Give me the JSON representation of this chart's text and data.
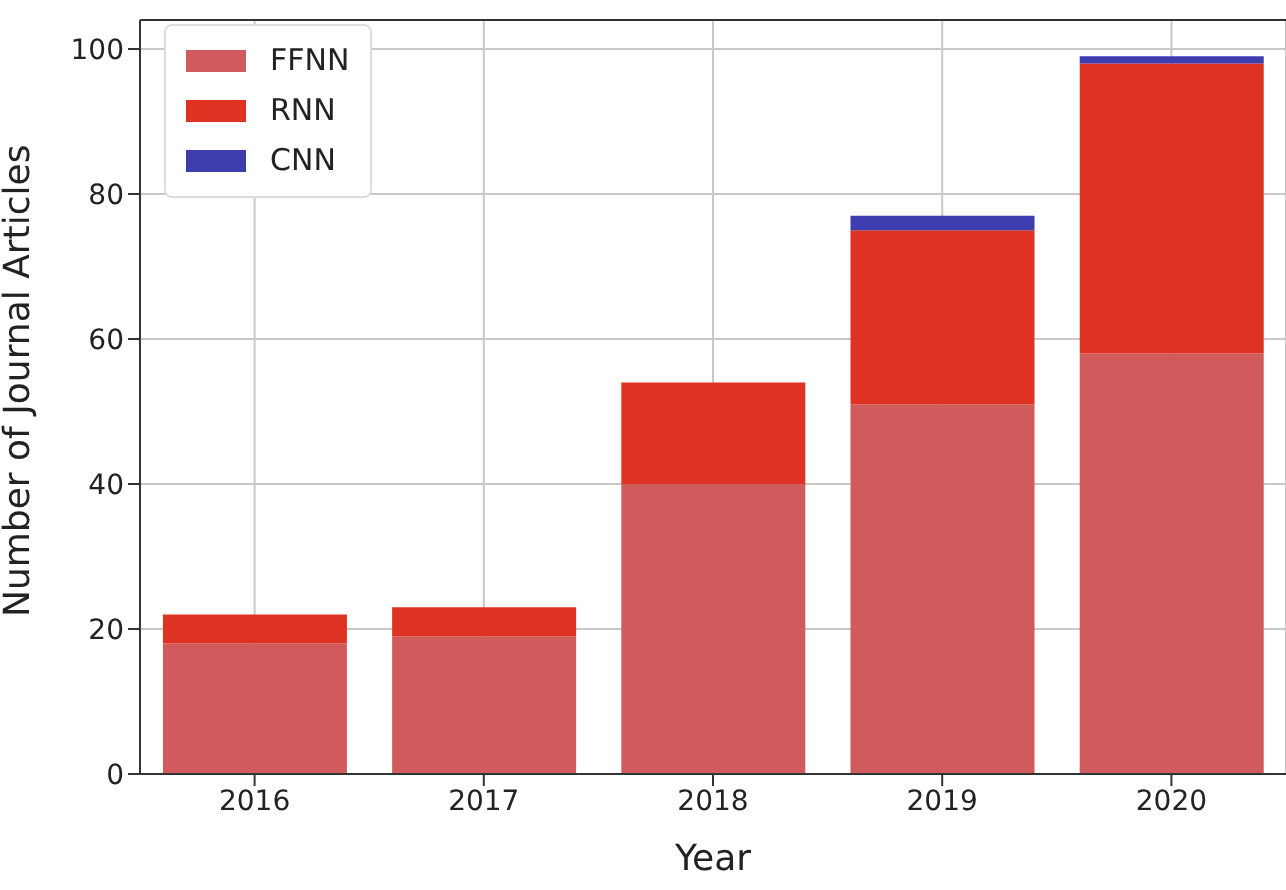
{
  "chart_data": {
    "type": "bar",
    "xlabel": "Year",
    "ylabel": "Number of Journal Articles",
    "categories": [
      "2016",
      "2017",
      "2018",
      "2019",
      "2020"
    ],
    "stacked": true,
    "series": [
      {
        "name": "FFNN",
        "color": "#d05a5c",
        "values": [
          18,
          19,
          40,
          51,
          58
        ]
      },
      {
        "name": "RNN",
        "color": "#de3322",
        "values": [
          4,
          4,
          14,
          24,
          40
        ]
      },
      {
        "name": "CNN",
        "color": "#3d3daf",
        "values": [
          0,
          0,
          0,
          2,
          1
        ]
      }
    ],
    "ylim": [
      0,
      104
    ],
    "yticks": [
      0,
      20,
      40,
      60,
      80,
      100
    ],
    "grid": true,
    "legend": "top left"
  }
}
